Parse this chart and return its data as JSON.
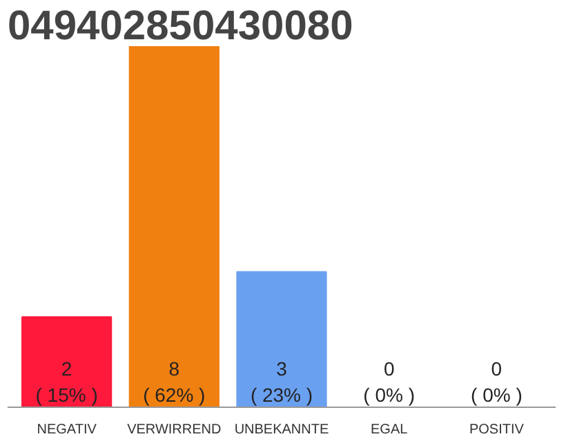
{
  "chart_data": {
    "type": "bar",
    "title": "049402850430080",
    "categories": [
      "NEGATIV",
      "VERWIRREND",
      "UNBEKANNTE",
      "EGAL",
      "POSITIV"
    ],
    "values": [
      2,
      8,
      3,
      0,
      0
    ],
    "colors": [
      "#ff1a3c",
      "#f08010",
      "#6aa0f0",
      "#cccccc",
      "#cccccc"
    ],
    "value_labels": [
      "2\n( 15% )",
      "8\n( 62% )",
      "3\n( 23% )",
      "0\n( 0% )",
      "0\n( 0% )"
    ],
    "tick_labels": "x"
  }
}
